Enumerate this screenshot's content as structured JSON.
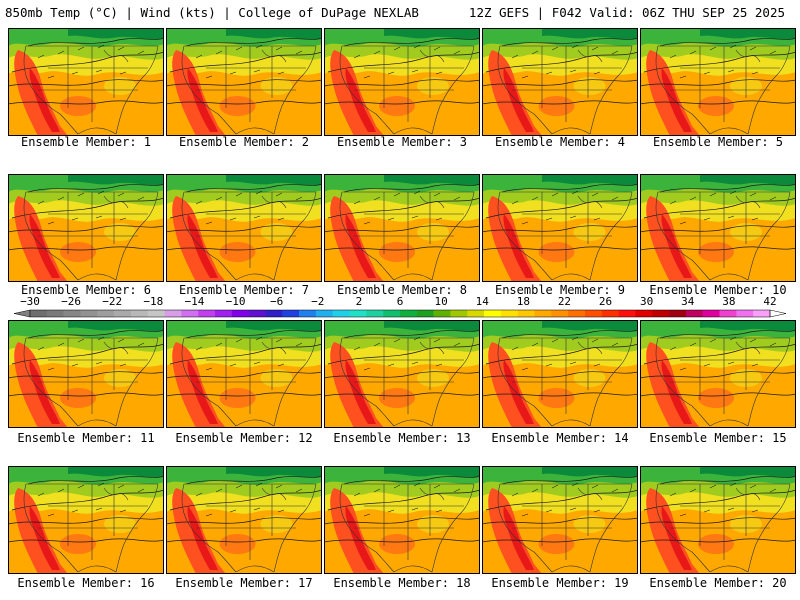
{
  "header": {
    "left": "850mb Temp (°C) | Wind (kts) | College of DuPage NEXLAB",
    "right": "12Z GEFS | F042 Valid: 06Z THU SEP 25 2025"
  },
  "members": [
    "Ensemble Member: 1",
    "Ensemble Member: 2",
    "Ensemble Member: 3",
    "Ensemble Member: 4",
    "Ensemble Member: 5",
    "Ensemble Member: 6",
    "Ensemble Member: 7",
    "Ensemble Member: 8",
    "Ensemble Member: 9",
    "Ensemble Member: 10",
    "Ensemble Member: 11",
    "Ensemble Member: 12",
    "Ensemble Member: 13",
    "Ensemble Member: 14",
    "Ensemble Member: 15",
    "Ensemble Member: 16",
    "Ensemble Member: 17",
    "Ensemble Member: 18",
    "Ensemble Member: 19",
    "Ensemble Member: 20"
  ],
  "colorbar": {
    "labels": [
      "−30",
      "−26",
      "−22",
      "−18",
      "−14",
      "−10",
      "−6",
      "−2",
      "2",
      "6",
      "10",
      "14",
      "18",
      "22",
      "26",
      "30",
      "34",
      "38",
      "42"
    ],
    "colors": [
      "#6e6e6e",
      "#7a7a7a",
      "#868686",
      "#929292",
      "#9e9e9e",
      "#aaaaaa",
      "#b8b8b8",
      "#c6c6c6",
      "#d7a0e6",
      "#d070f0",
      "#c040f0",
      "#a020f0",
      "#8000e8",
      "#6010d0",
      "#3020c8",
      "#2040e0",
      "#2080f0",
      "#20b0f0",
      "#20d0e8",
      "#20e0c8",
      "#20d0a0",
      "#10c070",
      "#10b040",
      "#20a020",
      "#60b000",
      "#a0c800",
      "#d8d800",
      "#ffff00",
      "#ffe000",
      "#ffc800",
      "#ffa800",
      "#ff9000",
      "#ff7000",
      "#ff5000",
      "#ff3000",
      "#ff1010",
      "#e00000",
      "#c00000",
      "#a00010",
      "#c00060",
      "#e000a0",
      "#f040d0",
      "#f070f0",
      "#f8a0f8"
    ]
  },
  "palette": {
    "cold": "#0a8a3a",
    "green": "#3cb43c",
    "lime": "#a0cc20",
    "yellow": "#f0e020",
    "orange": "#ffa800",
    "hot": "#ff5020",
    "hottest": "#e81818",
    "lines": "#1a1a1a"
  }
}
